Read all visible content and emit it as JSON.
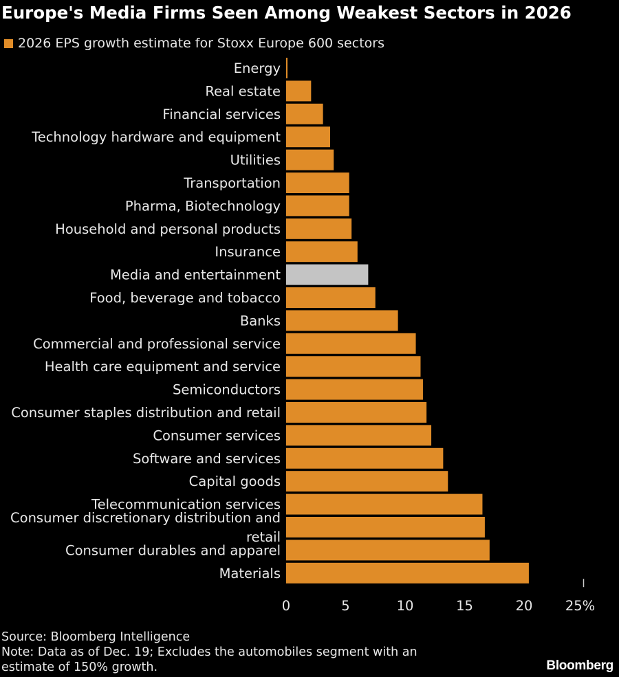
{
  "chart_data": {
    "type": "bar",
    "orientation": "horizontal",
    "title": "Europe's Media Firms Seen Among Weakest Sectors in 2026",
    "legend": [
      "2026 EPS growth estimate for Stoxx Europe 600 sectors"
    ],
    "categories": [
      "Energy",
      "Real estate",
      "Financial services",
      "Technology hardware and equipment",
      "Utilities",
      "Transportation",
      "Pharma, Biotechnology",
      "Household and personal products",
      "Insurance",
      "Media and entertainment",
      "Food, beverage and tobacco",
      "Banks",
      "Commercial and professional service",
      "Health care equipment and service",
      "Semiconductors",
      "Consumer staples distribution and retail",
      "Consumer services",
      "Software and services",
      "Capital goods",
      "Telecommunication services",
      "Consumer discretionary distribution and retail",
      "Consumer durables and apparel",
      "Materials"
    ],
    "values": [
      0.1,
      2.1,
      3.1,
      3.7,
      4.0,
      5.3,
      5.3,
      5.5,
      6.0,
      6.9,
      7.5,
      9.4,
      10.9,
      11.3,
      11.5,
      11.8,
      12.2,
      13.2,
      13.6,
      16.5,
      16.7,
      17.1,
      20.4
    ],
    "highlight": "Media and entertainment",
    "xlim": [
      0,
      25
    ],
    "xticks": [
      "0",
      "5",
      "10",
      "15",
      "20",
      "25%"
    ],
    "xlabel": "",
    "ylabel": "",
    "grid": false
  },
  "colors": {
    "bar": "#e08c28",
    "highlight": "#c4c4c4",
    "background": "#000000",
    "text": "#ffffff"
  },
  "source": "Source: Bloomberg Intelligence",
  "note_line1": "Note: Data as of Dec. 19; Excludes the automobiles segment with an",
  "note_line2": "estimate of 150% growth.",
  "brand": "Bloomberg"
}
